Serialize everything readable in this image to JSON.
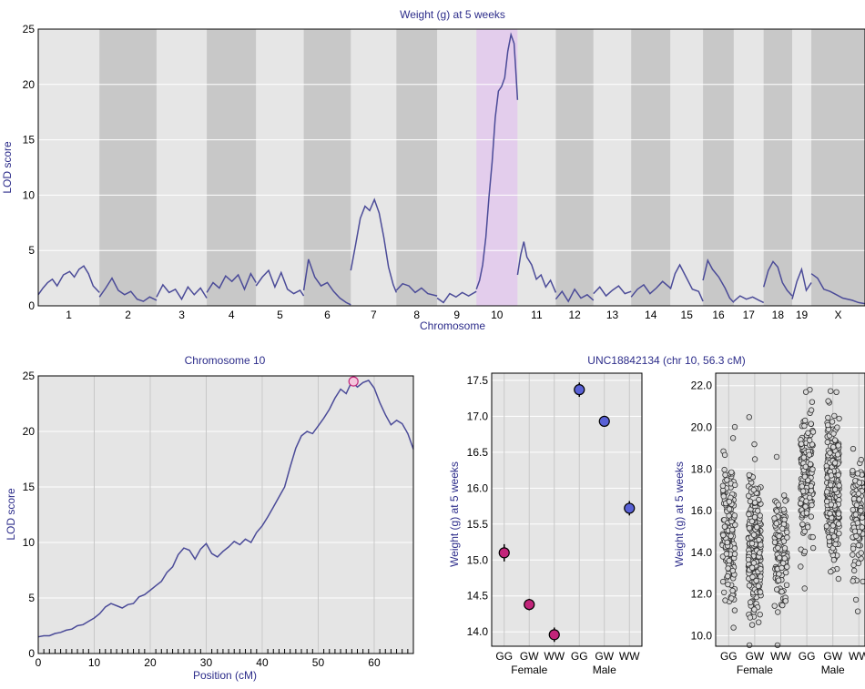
{
  "chart_data": [
    {
      "type": "line",
      "title": "Weight (g) at 5 weeks",
      "xlabel": "Chromosome",
      "ylabel": "LOD score",
      "ylim": [
        0,
        25
      ],
      "y_ticks": [
        0,
        5,
        10,
        15,
        20,
        25
      ],
      "highlighted_chromosome": "10",
      "chromosomes": [
        {
          "name": "1",
          "len": 195
        },
        {
          "name": "2",
          "len": 182
        },
        {
          "name": "3",
          "len": 160
        },
        {
          "name": "4",
          "len": 157
        },
        {
          "name": "5",
          "len": 152
        },
        {
          "name": "6",
          "len": 150
        },
        {
          "name": "7",
          "len": 145
        },
        {
          "name": "8",
          "len": 130
        },
        {
          "name": "9",
          "len": 125
        },
        {
          "name": "10",
          "len": 131
        },
        {
          "name": "11",
          "len": 122
        },
        {
          "name": "12",
          "len": 120
        },
        {
          "name": "13",
          "len": 120
        },
        {
          "name": "14",
          "len": 125
        },
        {
          "name": "15",
          "len": 104
        },
        {
          "name": "16",
          "len": 98
        },
        {
          "name": "17",
          "len": 95
        },
        {
          "name": "18",
          "len": 91
        },
        {
          "name": "19",
          "len": 61
        },
        {
          "name": "X",
          "len": 171
        }
      ],
      "lod_profiles": {
        "1": [
          [
            0,
            1
          ],
          [
            15,
            1.6
          ],
          [
            30,
            2.1
          ],
          [
            45,
            2.4
          ],
          [
            60,
            1.8
          ],
          [
            80,
            2.8
          ],
          [
            100,
            3.1
          ],
          [
            115,
            2.6
          ],
          [
            130,
            3.3
          ],
          [
            145,
            3.6
          ],
          [
            160,
            2.9
          ],
          [
            175,
            1.8
          ],
          [
            195,
            1.2
          ]
        ],
        "2": [
          [
            0,
            0.8
          ],
          [
            20,
            1.6
          ],
          [
            40,
            2.5
          ],
          [
            60,
            1.4
          ],
          [
            80,
            1.0
          ],
          [
            100,
            1.3
          ],
          [
            120,
            0.6
          ],
          [
            140,
            0.4
          ],
          [
            160,
            0.8
          ],
          [
            182,
            0.5
          ]
        ],
        "3": [
          [
            0,
            0.8
          ],
          [
            20,
            1.9
          ],
          [
            40,
            1.2
          ],
          [
            60,
            1.5
          ],
          [
            80,
            0.6
          ],
          [
            100,
            1.7
          ],
          [
            120,
            1.0
          ],
          [
            140,
            1.6
          ],
          [
            160,
            0.7
          ]
        ],
        "4": [
          [
            0,
            1.2
          ],
          [
            20,
            2.1
          ],
          [
            40,
            1.6
          ],
          [
            60,
            2.7
          ],
          [
            80,
            2.2
          ],
          [
            100,
            2.8
          ],
          [
            120,
            1.5
          ],
          [
            140,
            2.9
          ],
          [
            157,
            2.1
          ]
        ],
        "5": [
          [
            0,
            1.8
          ],
          [
            20,
            2.6
          ],
          [
            40,
            3.2
          ],
          [
            60,
            1.7
          ],
          [
            80,
            3.0
          ],
          [
            100,
            1.5
          ],
          [
            120,
            1.1
          ],
          [
            140,
            1.4
          ],
          [
            152,
            0.9
          ]
        ],
        "6": [
          [
            0,
            1.4
          ],
          [
            15,
            4.2
          ],
          [
            35,
            2.6
          ],
          [
            55,
            1.8
          ],
          [
            75,
            2.1
          ],
          [
            95,
            1.3
          ],
          [
            115,
            0.7
          ],
          [
            135,
            0.3
          ],
          [
            150,
            0.1
          ]
        ],
        "7": [
          [
            0,
            3.2
          ],
          [
            15,
            5.5
          ],
          [
            30,
            7.9
          ],
          [
            45,
            9.0
          ],
          [
            60,
            8.6
          ],
          [
            75,
            9.6
          ],
          [
            90,
            8.4
          ],
          [
            105,
            6.2
          ],
          [
            120,
            3.5
          ],
          [
            135,
            1.9
          ],
          [
            145,
            1.2
          ]
        ],
        "8": [
          [
            0,
            1.4
          ],
          [
            20,
            2.0
          ],
          [
            40,
            1.8
          ],
          [
            60,
            1.2
          ],
          [
            80,
            1.6
          ],
          [
            100,
            1.1
          ],
          [
            130,
            0.9
          ]
        ],
        "9": [
          [
            0,
            0.7
          ],
          [
            20,
            0.3
          ],
          [
            40,
            1.1
          ],
          [
            60,
            0.8
          ],
          [
            80,
            1.2
          ],
          [
            100,
            0.9
          ],
          [
            125,
            1.3
          ]
        ],
        "10": [
          [
            0,
            1.5
          ],
          [
            10,
            2.3
          ],
          [
            20,
            3.7
          ],
          [
            30,
            6.2
          ],
          [
            40,
            9.8
          ],
          [
            50,
            13.0
          ],
          [
            60,
            17.0
          ],
          [
            70,
            19.4
          ],
          [
            80,
            19.8
          ],
          [
            90,
            20.6
          ],
          [
            100,
            23.0
          ],
          [
            110,
            24.5
          ],
          [
            115,
            24.1
          ],
          [
            120,
            23.7
          ],
          [
            125,
            21.5
          ],
          [
            131,
            18.6
          ]
        ],
        "11": [
          [
            0,
            2.8
          ],
          [
            10,
            4.6
          ],
          [
            20,
            5.8
          ],
          [
            30,
            4.4
          ],
          [
            45,
            3.7
          ],
          [
            60,
            2.4
          ],
          [
            75,
            2.8
          ],
          [
            90,
            1.7
          ],
          [
            105,
            2.3
          ],
          [
            122,
            1.2
          ]
        ],
        "12": [
          [
            0,
            0.6
          ],
          [
            20,
            1.3
          ],
          [
            40,
            0.4
          ],
          [
            60,
            1.5
          ],
          [
            80,
            0.7
          ],
          [
            100,
            1.0
          ],
          [
            120,
            0.5
          ]
        ],
        "13": [
          [
            0,
            1.1
          ],
          [
            20,
            1.7
          ],
          [
            40,
            0.9
          ],
          [
            60,
            1.4
          ],
          [
            80,
            1.8
          ],
          [
            100,
            1.1
          ],
          [
            120,
            1.3
          ]
        ],
        "14": [
          [
            0,
            0.8
          ],
          [
            20,
            1.5
          ],
          [
            40,
            1.9
          ],
          [
            60,
            1.1
          ],
          [
            80,
            1.6
          ],
          [
            100,
            2.2
          ],
          [
            125,
            1.6
          ]
        ],
        "15": [
          [
            0,
            1.5
          ],
          [
            15,
            2.9
          ],
          [
            30,
            3.7
          ],
          [
            50,
            2.6
          ],
          [
            70,
            1.5
          ],
          [
            90,
            1.3
          ],
          [
            104,
            0.4
          ]
        ],
        "16": [
          [
            0,
            2.3
          ],
          [
            15,
            4.1
          ],
          [
            30,
            3.3
          ],
          [
            50,
            2.6
          ],
          [
            70,
            1.6
          ],
          [
            85,
            0.7
          ],
          [
            98,
            0.3
          ]
        ],
        "17": [
          [
            0,
            0.4
          ],
          [
            20,
            0.9
          ],
          [
            40,
            0.6
          ],
          [
            60,
            0.8
          ],
          [
            80,
            0.5
          ],
          [
            95,
            0.3
          ]
        ],
        "18": [
          [
            0,
            1.7
          ],
          [
            15,
            3.2
          ],
          [
            30,
            4.0
          ],
          [
            45,
            3.5
          ],
          [
            60,
            2.1
          ],
          [
            75,
            1.4
          ],
          [
            91,
            0.9
          ]
        ],
        "19": [
          [
            0,
            0.6
          ],
          [
            15,
            2.2
          ],
          [
            30,
            3.3
          ],
          [
            45,
            1.4
          ],
          [
            61,
            2.1
          ]
        ],
        "X": [
          [
            0,
            2.9
          ],
          [
            20,
            2.5
          ],
          [
            40,
            1.5
          ],
          [
            60,
            1.3
          ],
          [
            80,
            1.0
          ],
          [
            100,
            0.7
          ],
          [
            130,
            0.5
          ],
          [
            150,
            0.3
          ],
          [
            171,
            0.2
          ]
        ]
      }
    },
    {
      "type": "line",
      "title": "Chromosome 10",
      "xlabel": "Position (cM)",
      "ylabel": "LOD score",
      "xlim": [
        0,
        67
      ],
      "ylim": [
        0,
        25
      ],
      "x_ticks": [
        0,
        10,
        20,
        30,
        40,
        50,
        60
      ],
      "y_ticks": [
        0,
        5,
        10,
        15,
        20,
        25
      ],
      "x": [
        0,
        1,
        2,
        3,
        4,
        5,
        6,
        7,
        8,
        9,
        10,
        11,
        12,
        13,
        14,
        15,
        16,
        17,
        18,
        19,
        20,
        21,
        22,
        23,
        24,
        25,
        26,
        27,
        28,
        29,
        30,
        31,
        32,
        33,
        34,
        35,
        36,
        37,
        38,
        39,
        40,
        41,
        42,
        43,
        44,
        45,
        46,
        47,
        48,
        49,
        50,
        51,
        52,
        53,
        54,
        55,
        56,
        57,
        58,
        59,
        60,
        61,
        62,
        63,
        64,
        65,
        66,
        67
      ],
      "y": [
        1.5,
        1.6,
        1.6,
        1.8,
        1.9,
        2.1,
        2.2,
        2.5,
        2.6,
        2.9,
        3.2,
        3.6,
        4.2,
        4.5,
        4.3,
        4.1,
        4.4,
        4.5,
        5.1,
        5.3,
        5.7,
        6.1,
        6.5,
        7.3,
        7.8,
        8.9,
        9.5,
        9.3,
        8.5,
        9.4,
        9.9,
        9.0,
        8.7,
        9.2,
        9.6,
        10.1,
        9.8,
        10.3,
        10.0,
        10.9,
        11.5,
        12.3,
        13.2,
        14.1,
        15.0,
        16.8,
        18.5,
        19.6,
        20.0,
        19.8,
        20.5,
        21.2,
        22.0,
        23.0,
        23.8,
        23.4,
        24.5,
        24.0,
        24.4,
        24.6,
        23.9,
        22.6,
        21.5,
        20.6,
        21.0,
        20.7,
        19.8,
        18.4
      ],
      "peak": {
        "x": 56.3,
        "y": 24.5
      },
      "marker_positions": [
        1,
        2,
        3,
        4,
        5,
        6,
        7,
        8,
        9,
        11,
        12,
        13,
        14,
        15,
        16,
        17,
        18,
        19,
        21,
        22,
        23,
        24,
        25,
        26,
        27,
        28,
        29,
        31,
        32,
        33,
        34,
        35,
        36,
        37,
        38,
        39,
        41,
        42,
        43,
        44,
        45,
        46,
        47,
        48,
        49,
        51,
        52,
        53,
        54,
        55,
        56,
        57,
        58,
        59,
        61,
        62,
        63,
        64,
        65,
        66
      ]
    },
    {
      "type": "scatter",
      "title": "UNC18842134 (chr 10, 56.3 cM)",
      "ylabel": "Weight (g) at 5 weeks",
      "categories": [
        "GG",
        "GW",
        "WW",
        "GG",
        "GW",
        "WW"
      ],
      "groups": [
        "Female",
        "Male"
      ],
      "ylim": [
        13.8,
        17.6
      ],
      "y_ticks": [
        "14.0",
        "14.5",
        "15.0",
        "15.5",
        "16.0",
        "16.5",
        "17.0",
        "17.5"
      ],
      "means": [
        15.1,
        14.38,
        13.96,
        17.37,
        16.93,
        15.72
      ],
      "se": [
        0.12,
        0.08,
        0.1,
        0.1,
        0.07,
        0.1
      ],
      "colors": [
        "#c2257a",
        "#c2257a",
        "#c2257a",
        "#5961d6",
        "#5961d6",
        "#5961d6"
      ]
    },
    {
      "type": "scatter",
      "ylabel": "Weight (g) at 5 weeks",
      "categories": [
        "GG",
        "GW",
        "WW",
        "GG",
        "GW",
        "WW"
      ],
      "groups": [
        "Female",
        "Male"
      ],
      "ylim": [
        9.5,
        22.6
      ],
      "y_ticks": [
        "10.0",
        "12.0",
        "14.0",
        "16.0",
        "18.0",
        "20.0",
        "22.0"
      ],
      "group_center": [
        15.0,
        14.4,
        14.0,
        17.4,
        16.9,
        15.7
      ],
      "group_sd": [
        1.9,
        1.6,
        1.4,
        1.8,
        1.8,
        1.6
      ],
      "group_n": [
        150,
        240,
        120,
        150,
        240,
        120
      ]
    }
  ]
}
